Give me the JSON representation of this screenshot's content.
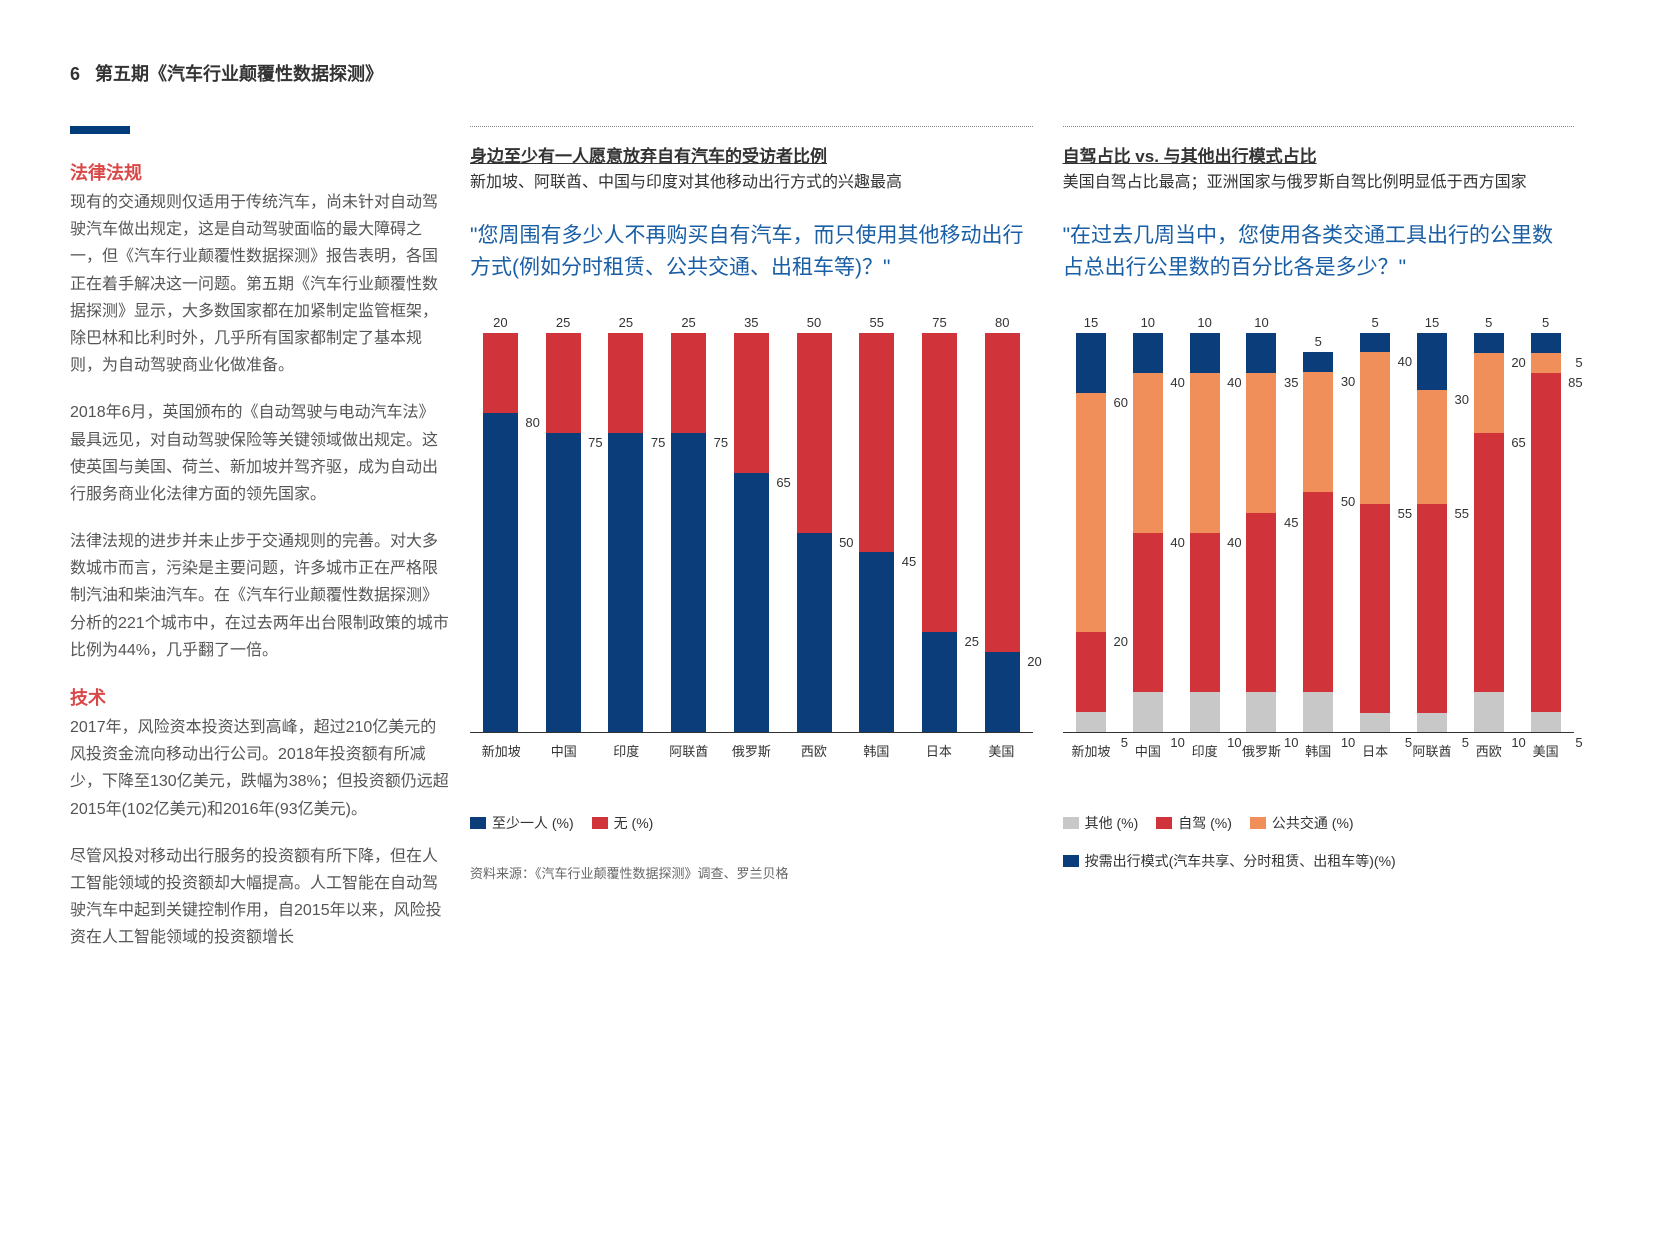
{
  "header": {
    "page_num": "6",
    "title": "第五期《汽车行业颠覆性数据探测》"
  },
  "left": {
    "s1_heading": "法律法规",
    "s1_p1": "现有的交通规则仅适用于传统汽车，尚未针对自动驾驶汽车做出规定，这是自动驾驶面临的最大障碍之一，但《汽车行业颠覆性数据探测》报告表明，各国正在着手解决这一问题。第五期《汽车行业颠覆性数据探测》显示，大多数国家都在加紧制定监管框架，除巴林和比利时外，几乎所有国家都制定了基本规则，为自动驾驶商业化做准备。",
    "s1_p2": "2018年6月，英国颁布的《自动驾驶与电动汽车法》最具远见，对自动驾驶保险等关键领域做出规定。这使英国与美国、荷兰、新加坡并驾齐驱，成为自动出行服务商业化法律方面的领先国家。",
    "s1_p3": "法律法规的进步并未止步于交通规则的完善。对大多数城市而言，污染是主要问题，许多城市正在严格限制汽油和柴油汽车。在《汽车行业颠覆性数据探测》分析的221个城市中，在过去两年出台限制政策的城市比例为44%，几乎翻了一倍。",
    "s2_heading": "技术",
    "s2_p1": "2017年，风险资本投资达到高峰，超过210亿美元的风投资金流向移动出行公司。2018年投资额有所减少，下降至130亿美元，跌幅为38%；但投资额仍远超2015年(102亿美元)和2016年(93亿美元)。",
    "s2_p2": "尽管风投对移动出行服务的投资额有所下降，但在人工智能领域的投资额却大幅提高。人工智能在自动驾驶汽车中起到关键控制作用，自2015年以来，风险投资在人工智能领域的投资额增长"
  },
  "chart1": {
    "title": "身边至少有一人愿意放弃自有汽车的受访者比例",
    "subtitle": "新加坡、阿联酋、中国与印度对其他移动出行方式的兴趣最高",
    "question": "\"您周围有多少人不再购买自有汽车，而只使用其他移动出行方式(例如分时租赁、公共交通、出租车等)？\"",
    "colors": {
      "blue": "#0a3d7a",
      "red": "#d1333a"
    },
    "legend": [
      {
        "label": "至少一人 (%)",
        "color": "#0a3d7a"
      },
      {
        "label": "无 (%)",
        "color": "#d1333a"
      }
    ],
    "categories": [
      "新加坡",
      "中国",
      "印度",
      "阿联酋",
      "俄罗斯",
      "西欧",
      "韩国",
      "日本",
      "美国"
    ],
    "data": [
      {
        "atleast": 80,
        "none": 20
      },
      {
        "atleast": 75,
        "none": 25
      },
      {
        "atleast": 75,
        "none": 25
      },
      {
        "atleast": 75,
        "none": 25
      },
      {
        "atleast": 65,
        "none": 35
      },
      {
        "atleast": 50,
        "none": 50
      },
      {
        "atleast": 45,
        "none": 55
      },
      {
        "atleast": 25,
        "none": 75
      },
      {
        "atleast": 20,
        "none": 80
      }
    ]
  },
  "chart2": {
    "title": "自驾占比 vs. 与其他出行模式占比",
    "subtitle": "美国自驾占比最高；亚洲国家与俄罗斯自驾比例明显低于西方国家",
    "question": "\"在过去几周当中，您使用各类交通工具出行的公里数占总出行公里数的百分比各是多少？\"",
    "colors": {
      "grey": "#c8c8c8",
      "red": "#d1333a",
      "orange": "#f08f5a",
      "blue": "#0a3d7a"
    },
    "legend": [
      {
        "label": "其他 (%)",
        "color": "#c8c8c8"
      },
      {
        "label": "自驾 (%)",
        "color": "#d1333a"
      },
      {
        "label": "公共交通 (%)",
        "color": "#f08f5a"
      },
      {
        "label": "按需出行模式(汽车共享、分时租赁、出租车等)(%)",
        "color": "#0a3d7a"
      }
    ],
    "categories": [
      "新加坡",
      "中国",
      "印度",
      "俄罗斯",
      "韩国",
      "日本",
      "阿联酋",
      "西欧",
      "美国"
    ],
    "data": [
      {
        "other": 5,
        "self": 20,
        "public": 60,
        "demand": 15
      },
      {
        "other": 10,
        "self": 40,
        "public": 40,
        "demand": 10
      },
      {
        "other": 10,
        "self": 40,
        "public": 40,
        "demand": 10
      },
      {
        "other": 10,
        "self": 45,
        "public": 35,
        "demand": 10
      },
      {
        "other": 10,
        "self": 50,
        "public": 30,
        "demand": 5
      },
      {
        "other": 5,
        "self": 55,
        "public": 40,
        "demand": 5
      },
      {
        "other": 5,
        "self": 55,
        "public": 30,
        "demand": 15
      },
      {
        "other": 10,
        "self": 65,
        "public": 20,
        "demand": 5
      },
      {
        "other": 5,
        "self": 85,
        "public": 5,
        "demand": 5
      }
    ]
  },
  "source": "资料来源：《汽车行业颠覆性数据探测》调查、罗兰贝格"
}
